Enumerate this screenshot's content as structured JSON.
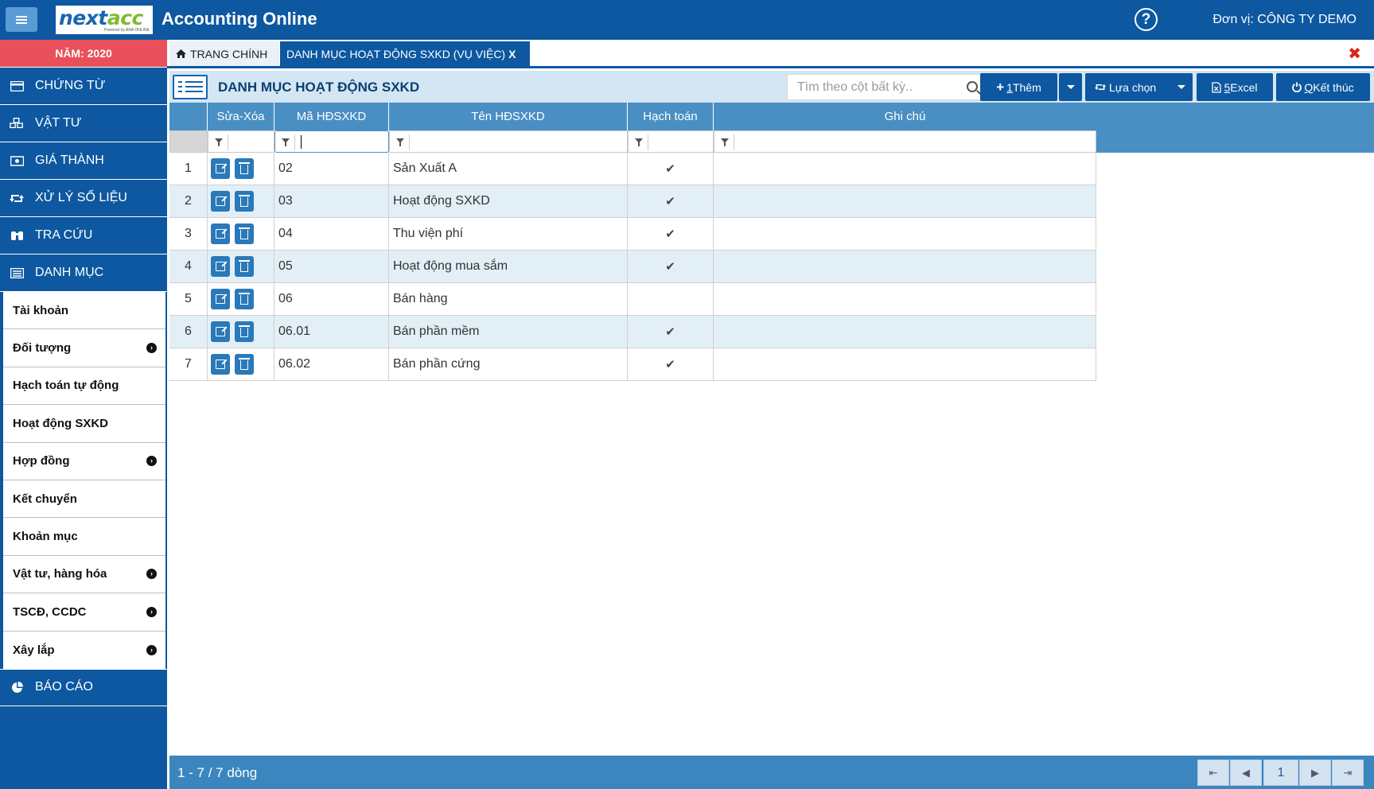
{
  "header": {
    "menu_icon": "hamburger-icon",
    "logo_text_a": "next",
    "logo_text_b": "acc",
    "logo_tagline": "Powered by ANA ONLINE",
    "app_title": "Accounting Online",
    "help_icon": "question-circle-icon",
    "unit_label": "Đơn vị: CÔNG TY DEMO"
  },
  "sidebar": {
    "year_label": "NĂM: 2020",
    "items": [
      {
        "label": "CHỨNG TỪ",
        "icon": "credit-card-icon"
      },
      {
        "label": "VẬT TƯ",
        "icon": "cubes-icon"
      },
      {
        "label": "GIÁ THÀNH",
        "icon": "money-icon"
      },
      {
        "label": "XỬ LÝ SỐ LIỆU",
        "icon": "retweet-icon"
      },
      {
        "label": "TRA CỨU",
        "icon": "binoculars-icon"
      },
      {
        "label": "DANH MỤC",
        "icon": "list-alt-icon"
      }
    ],
    "submenu": [
      {
        "label": "Tài khoản",
        "has_children": false
      },
      {
        "label": "Đối tượng",
        "has_children": true
      },
      {
        "label": "Hạch toán tự động",
        "has_children": false
      },
      {
        "label": "Hoạt động SXKD",
        "has_children": false
      },
      {
        "label": "Hợp đồng",
        "has_children": true
      },
      {
        "label": "Kết chuyển",
        "has_children": false
      },
      {
        "label": "Khoản mục",
        "has_children": false
      },
      {
        "label": "Vật tư, hàng hóa",
        "has_children": true
      },
      {
        "label": "TSCĐ, CCDC",
        "has_children": true
      },
      {
        "label": "Xây lắp",
        "has_children": true
      }
    ],
    "bottom_item": {
      "label": "BÁO CÁO",
      "icon": "pie-chart-icon"
    },
    "chevron_glyph": "›"
  },
  "tabs": {
    "home": {
      "label": "TRANG CHÍNH",
      "icon": "home-icon"
    },
    "active": {
      "label": "DANH MỤC HOẠT ĐỘNG SXKD (VỤ VIỆC)",
      "close": "X"
    },
    "close_all_glyph": "✖"
  },
  "toolbar": {
    "title": "DANH MỤC HOẠT ĐỘNG SXKD",
    "search_placeholder": "Tìm theo cột bất kỳ..",
    "add_button": {
      "prefix": "+",
      "shortcut": "1",
      "label": " Thêm"
    },
    "options_button": {
      "icon": "retweet-icon",
      "label": "Lựa chọn"
    },
    "excel_button": {
      "shortcut": "5",
      "label": " Excel"
    },
    "exit_button": {
      "shortcut": "Q",
      "label": " Kết thúc"
    }
  },
  "grid": {
    "columns": [
      "Sửa-Xóa",
      "Mã HĐSXKD",
      "Tên HĐSXKD",
      "Hạch toán",
      "Ghi chú"
    ],
    "check_glyph": "✔",
    "rows": [
      {
        "no": "1",
        "code": "02",
        "name": "Sản Xuất A",
        "posted": true,
        "note": ""
      },
      {
        "no": "2",
        "code": "03",
        "name": "Hoạt động SXKD",
        "posted": true,
        "note": ""
      },
      {
        "no": "3",
        "code": "04",
        "name": "Thu viện phí",
        "posted": true,
        "note": ""
      },
      {
        "no": "4",
        "code": "05",
        "name": "Hoạt động mua sắm",
        "posted": true,
        "note": ""
      },
      {
        "no": "5",
        "code": "06",
        "name": "Bán hàng",
        "posted": false,
        "note": ""
      },
      {
        "no": "6",
        "code": "06.01",
        "name": "Bán phần mềm",
        "posted": true,
        "note": ""
      },
      {
        "no": "7",
        "code": "06.02",
        "name": "Bán phần cứng",
        "posted": true,
        "note": ""
      }
    ]
  },
  "footer": {
    "status": "1 - 7 / 7 dòng",
    "page": "1",
    "first_glyph": "⇤",
    "prev_glyph": "◀",
    "next_glyph": "▶",
    "last_glyph": "⇥"
  },
  "colors": {
    "primary": "#0d58a0",
    "year_badge": "#e9505b",
    "grid_header": "#4a8fc3",
    "row_alt": "#e3eff6",
    "close_red": "#d9261c"
  }
}
